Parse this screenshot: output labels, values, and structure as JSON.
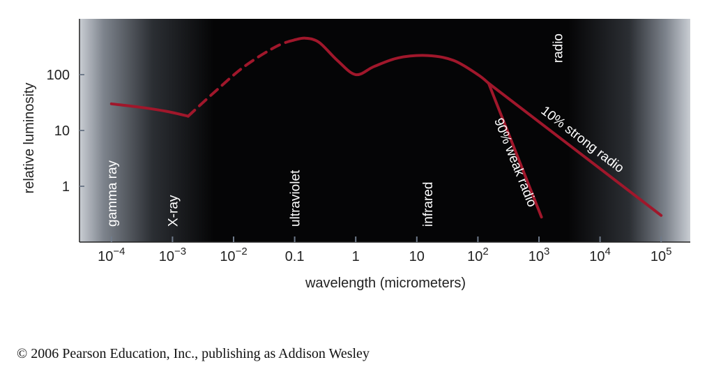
{
  "chart_data": {
    "type": "line",
    "xscale": "log",
    "yscale": "log",
    "xlabel": "wavelength (micrometers)",
    "ylabel": "relative luminosity",
    "xlim": [
      3e-05,
      300000
    ],
    "ylim": [
      0.1,
      1000
    ],
    "x_ticks": [
      {
        "value": 0.0001,
        "base": "10",
        "exp": "−4"
      },
      {
        "value": 0.001,
        "base": "10",
        "exp": "−3"
      },
      {
        "value": 0.01,
        "base": "10",
        "exp": "−2"
      },
      {
        "value": 0.1,
        "base": "0.1",
        "exp": ""
      },
      {
        "value": 1,
        "base": "1",
        "exp": ""
      },
      {
        "value": 10,
        "base": "10",
        "exp": ""
      },
      {
        "value": 100,
        "base": "10",
        "exp": "2"
      },
      {
        "value": 1000,
        "base": "10",
        "exp": "3"
      },
      {
        "value": 10000,
        "base": "10",
        "exp": "4"
      },
      {
        "value": 100000,
        "base": "10",
        "exp": "5"
      }
    ],
    "y_ticks": [
      {
        "value": 1,
        "label": "1"
      },
      {
        "value": 10,
        "label": "10"
      },
      {
        "value": 100,
        "label": "100"
      }
    ],
    "bands": [
      {
        "label": "gamma ray",
        "x": 0.0001
      },
      {
        "label": "X-ray",
        "x": 0.001
      },
      {
        "label": "ultraviolet",
        "x": 0.1
      },
      {
        "label": "infrared",
        "x": 15
      },
      {
        "label": "radio",
        "x": 2000
      }
    ],
    "series": [
      {
        "style": "solid",
        "x": [
          0.0001,
          0.0003,
          0.0008,
          0.0018
        ],
        "y": [
          30,
          26,
          22,
          18
        ]
      },
      {
        "style": "dashed",
        "x": [
          0.0018,
          0.005,
          0.015,
          0.05,
          0.1
        ],
        "y": [
          18,
          50,
          140,
          320,
          420
        ]
      },
      {
        "style": "solid",
        "x": [
          0.1,
          0.15,
          0.25,
          0.5,
          1,
          2,
          5,
          15,
          40,
          100,
          150
        ],
        "y": [
          420,
          450,
          380,
          180,
          100,
          140,
          200,
          220,
          180,
          100,
          70
        ]
      },
      {
        "style": "solid",
        "label": "90% weak radio",
        "x": [
          150,
          1100
        ],
        "y": [
          70,
          0.28
        ]
      },
      {
        "style": "solid",
        "label": "10% strong radio",
        "x": [
          150,
          100000
        ],
        "y": [
          70,
          0.3
        ]
      }
    ],
    "colors": {
      "curve": "#a0172b",
      "plot_bg_center": "#000000",
      "plot_bg_edge": "#c8ccd2"
    }
  },
  "copyright": "© 2006 Pearson Education, Inc., publishing as Addison Wesley"
}
